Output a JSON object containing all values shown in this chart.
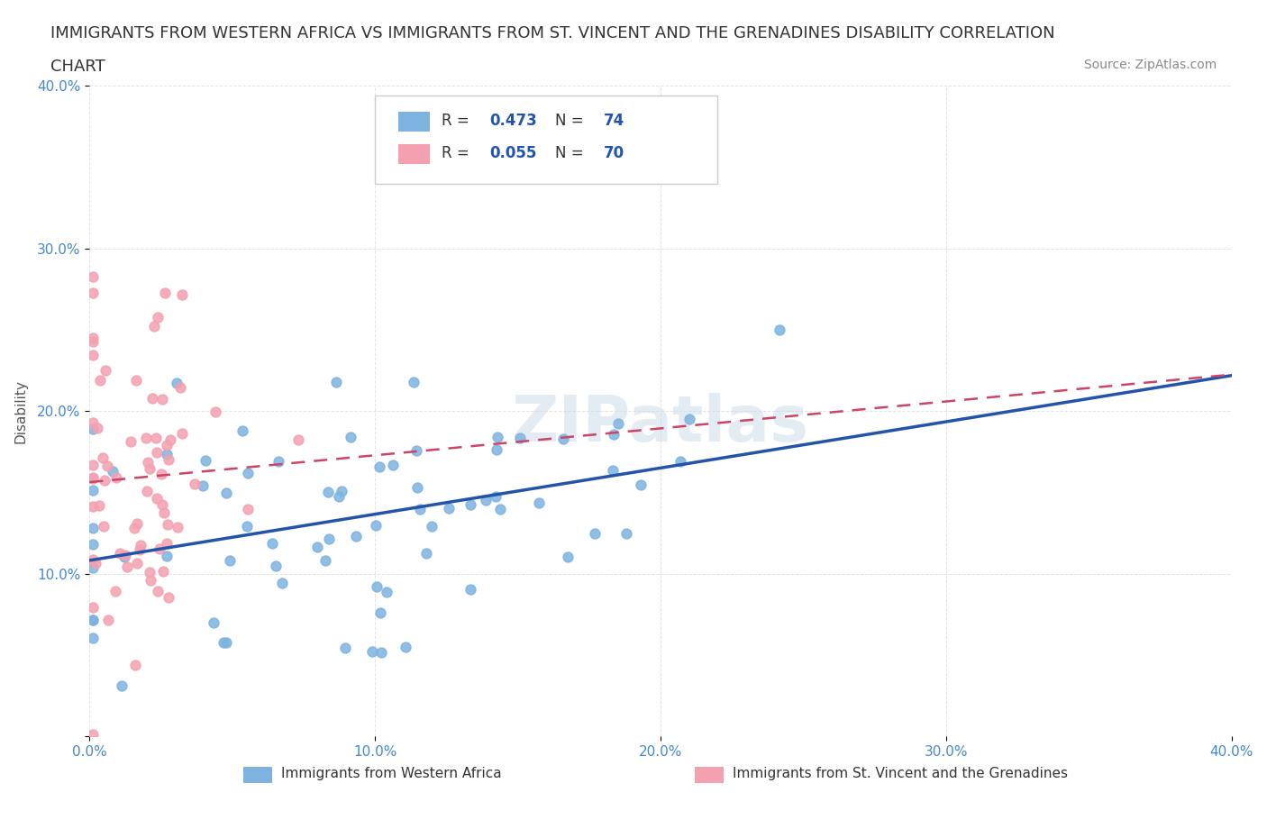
{
  "title_line1": "IMMIGRANTS FROM WESTERN AFRICA VS IMMIGRANTS FROM ST. VINCENT AND THE GRENADINES DISABILITY CORRELATION",
  "title_line2": "CHART",
  "source": "Source: ZipAtlas.com",
  "xlabel": "",
  "ylabel": "Disability",
  "xlim": [
    0.0,
    0.4
  ],
  "ylim": [
    0.0,
    0.4
  ],
  "xticks": [
    0.0,
    0.1,
    0.2,
    0.3,
    0.4
  ],
  "yticks": [
    0.0,
    0.1,
    0.2,
    0.3,
    0.4
  ],
  "xticklabels": [
    "0.0%",
    "10.0%",
    "20.0%",
    "30.0%",
    "40.0%"
  ],
  "yticklabels": [
    "",
    "10.0%",
    "20.0%",
    "30.0%",
    "40.0%"
  ],
  "series1": {
    "label": "Immigrants from Western Africa",
    "color": "#7eb3e0",
    "R": 0.473,
    "N": 74,
    "trend_color": "#2255aa"
  },
  "series2": {
    "label": "Immigrants from St. Vincent and the Grenadines",
    "color": "#f4a0b0",
    "R": 0.055,
    "N": 70,
    "trend_color": "#cc4466"
  },
  "watermark": "ZIPatlas",
  "background_color": "#ffffff",
  "grid_color": "#dddddd",
  "title_fontsize": 13,
  "axis_label_fontsize": 11,
  "tick_fontsize": 11
}
